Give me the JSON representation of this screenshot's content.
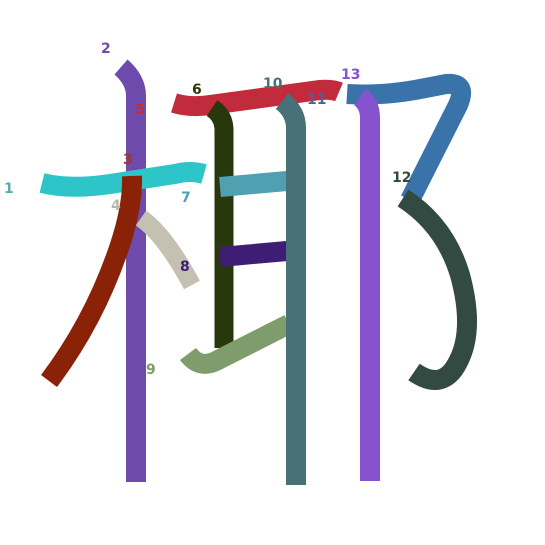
{
  "character": "椰",
  "strokes": [
    {
      "n": "1",
      "color": "#2ec5c8",
      "label_color": "#5aa9ad"
    },
    {
      "n": "2",
      "color": "#6e4aac",
      "label_color": "#6e4aac"
    },
    {
      "n": "3",
      "color": "#8a2207",
      "label_color": "#a3352a"
    },
    {
      "n": "4",
      "color": "#c5c1b2",
      "label_color": "#b9b6aa"
    },
    {
      "n": "5",
      "color": "#c22b3b",
      "label_color": "#c22b3b"
    },
    {
      "n": "6",
      "color": "#29380c",
      "label_color": "#29380c"
    },
    {
      "n": "7",
      "color": "#4fa0b0",
      "label_color": "#4fa0b0"
    },
    {
      "n": "8",
      "color": "#3e1e74",
      "label_color": "#3e1e74"
    },
    {
      "n": "9",
      "color": "#7e9c6c",
      "label_color": "#7e9c6c"
    },
    {
      "n": "10",
      "color": "#477077",
      "label_color": "#477077"
    },
    {
      "n": "11",
      "color": "#3a72aa",
      "label_color": "#4f5f9e"
    },
    {
      "n": "12",
      "color": "#334a42",
      "label_color": "#334a42"
    },
    {
      "n": "13",
      "color": "#8752cd",
      "label_color": "#8752cd"
    }
  ]
}
